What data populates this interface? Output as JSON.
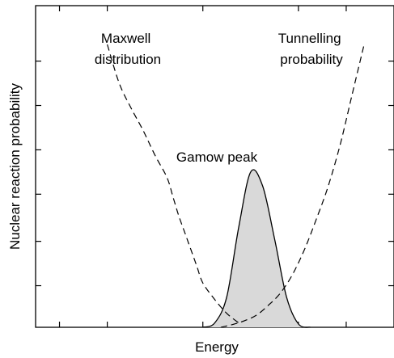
{
  "chart_data": {
    "type": "line",
    "title": "",
    "xlabel": "Energy",
    "ylabel": "Nuclear reaction probability",
    "tick_labels": "none",
    "grid": false,
    "legend": "none",
    "series": [
      {
        "name": "Maxwell distribution",
        "style": "dashed",
        "x": [
          0.6,
          0.7,
          0.8,
          0.9,
          1.0,
          1.1,
          1.15,
          1.2,
          1.25,
          1.3,
          1.35,
          1.4,
          1.5,
          1.6,
          1.7
        ],
        "y": [
          5.1,
          4.4,
          3.95,
          3.55,
          3.1,
          2.7,
          2.35,
          2.0,
          1.7,
          1.4,
          1.1,
          0.8,
          0.5,
          0.25,
          0.08
        ]
      },
      {
        "name": "Tunnelling probability",
        "style": "dashed",
        "x": [
          1.55,
          1.65,
          1.75,
          1.85,
          1.95,
          2.05,
          2.15,
          2.25,
          2.35,
          2.45,
          2.55,
          2.65,
          2.75
        ],
        "y": [
          0.0,
          0.05,
          0.12,
          0.22,
          0.4,
          0.62,
          0.95,
          1.4,
          1.95,
          2.55,
          3.3,
          4.2,
          5.1
        ]
      },
      {
        "name": "Gamow peak",
        "style": "solid-filled",
        "x": [
          1.4,
          1.5,
          1.6,
          1.7,
          1.8,
          1.9,
          2.0,
          2.1,
          2.2,
          2.3
        ],
        "y": [
          0.0,
          0.08,
          0.55,
          1.8,
          2.8,
          2.55,
          1.6,
          0.55,
          0.06,
          0.0
        ]
      }
    ],
    "annotations": [
      {
        "line1": "Maxwell",
        "line2": "distribution"
      },
      {
        "line1": "Tunnelling",
        "line2": "probability"
      },
      {
        "text": "Gamow peak"
      }
    ],
    "colors": {
      "fill": "#d9d9d9",
      "line": "#000000"
    }
  }
}
